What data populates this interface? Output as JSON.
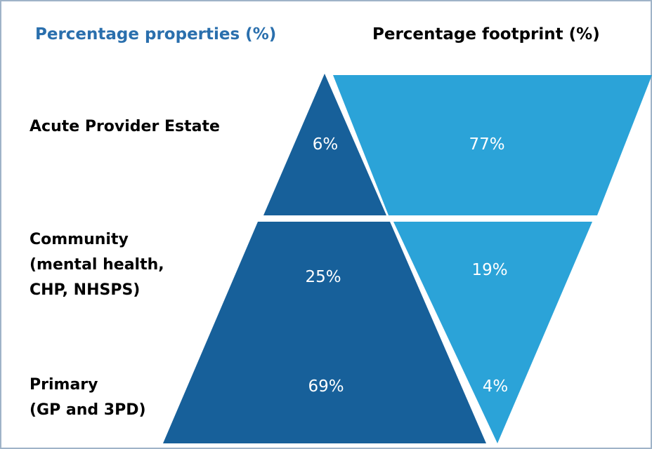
{
  "headers": {
    "properties": "Percentage properties (%)",
    "footprint": "Percentage footprint (%)"
  },
  "rows": [
    {
      "label": [
        "Acute Provider Estate"
      ],
      "properties": "6%",
      "footprint": "77%"
    },
    {
      "label": [
        "Community",
        "(mental health,",
        "CHP, NHSPS)"
      ],
      "properties": "25%",
      "footprint": "19%"
    },
    {
      "label": [
        "Primary",
        "(GP and 3PD)"
      ],
      "properties": "69%",
      "footprint": "4%"
    }
  ]
}
